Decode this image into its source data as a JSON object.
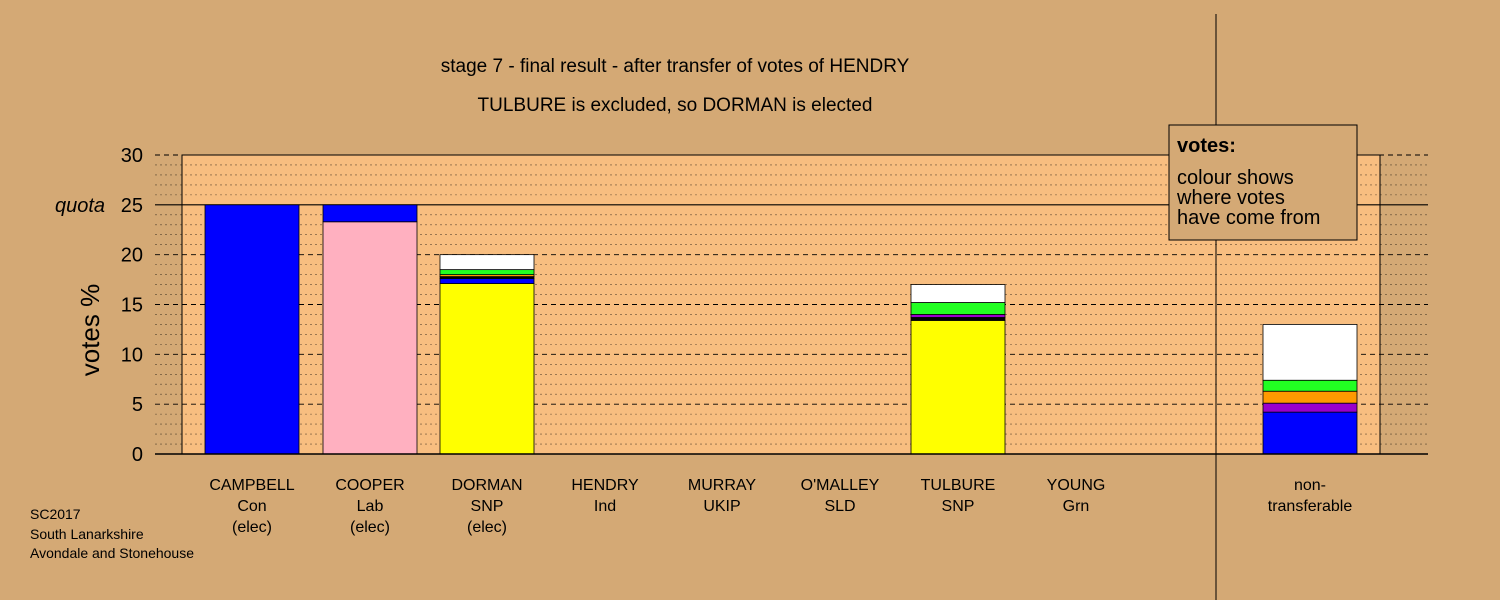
{
  "chart_data": {
    "type": "bar",
    "stacked": true,
    "title": "stage 7 - final result - after transfer of votes of HENDRY",
    "subtitle": "TULBURE is excluded, so DORMAN is elected",
    "ylabel": "votes %",
    "ylim": [
      0,
      30
    ],
    "yticks": [
      "0",
      "5",
      "10",
      "15",
      "20",
      "25",
      "30"
    ],
    "quota": {
      "label": "quota",
      "value": 25
    },
    "grid": "dashed major, dotted minor",
    "categories": [
      {
        "name": "CAMPBELL",
        "party": "Con",
        "status": "(elec)"
      },
      {
        "name": "COOPER",
        "party": "Lab",
        "status": "(elec)"
      },
      {
        "name": "DORMAN",
        "party": "SNP",
        "status": "(elec)"
      },
      {
        "name": "HENDRY",
        "party": "Ind",
        "status": ""
      },
      {
        "name": "MURRAY",
        "party": "UKIP",
        "status": ""
      },
      {
        "name": "O'MALLEY",
        "party": "SLD",
        "status": ""
      },
      {
        "name": "TULBURE",
        "party": "SNP",
        "status": ""
      },
      {
        "name": "YOUNG",
        "party": "Grn",
        "status": ""
      }
    ],
    "nontransferable": {
      "line1": "non-",
      "line2": "transferable"
    },
    "bars": [
      {
        "category": "CAMPBELL",
        "segments": [
          {
            "value": 25.0,
            "color": "#0000ff"
          }
        ]
      },
      {
        "category": "COOPER",
        "segments": [
          {
            "value": 23.3,
            "color": "#ffb0c0"
          },
          {
            "value": 1.7,
            "color": "#0000ff"
          }
        ]
      },
      {
        "category": "DORMAN",
        "segments": [
          {
            "value": 17.1,
            "color": "#ffff00"
          },
          {
            "value": 0.5,
            "color": "#0000ff"
          },
          {
            "value": 0.2,
            "color": "#000000"
          },
          {
            "value": 0.2,
            "color": "#ff9900"
          },
          {
            "value": 0.5,
            "color": "#22ff22"
          },
          {
            "value": 1.5,
            "color": "#ffffff"
          }
        ]
      },
      {
        "category": "HENDRY",
        "segments": []
      },
      {
        "category": "MURRAY",
        "segments": []
      },
      {
        "category": "O'MALLEY",
        "segments": []
      },
      {
        "category": "TULBURE",
        "segments": [
          {
            "value": 13.4,
            "color": "#ffff00"
          },
          {
            "value": 0.3,
            "color": "#000000"
          },
          {
            "value": 0.3,
            "color": "#9900cc"
          },
          {
            "value": 1.2,
            "color": "#22ff22"
          },
          {
            "value": 1.8,
            "color": "#ffffff"
          }
        ]
      },
      {
        "category": "YOUNG",
        "segments": []
      },
      {
        "category": "non-transferable",
        "segments": [
          {
            "value": 4.2,
            "color": "#0000ff"
          },
          {
            "value": 0.9,
            "color": "#9900cc"
          },
          {
            "value": 1.2,
            "color": "#ff9900"
          },
          {
            "value": 1.1,
            "color": "#22ff22"
          },
          {
            "value": 5.6,
            "color": "#ffffff"
          }
        ]
      }
    ],
    "legend": {
      "title": "votes:",
      "lines": [
        "colour shows",
        "where votes",
        "have come from"
      ],
      "position": "top-right"
    }
  },
  "footer": {
    "line1": "SC2017",
    "line2": "South Lanarkshire",
    "line3": "Avondale and Stonehouse"
  },
  "colors": {
    "background": "#d4a975",
    "plot_area": "#f8be80"
  }
}
